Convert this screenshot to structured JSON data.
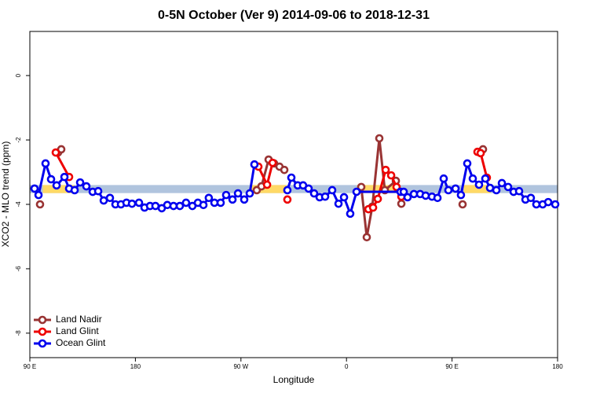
{
  "chart_data": {
    "type": "line",
    "title": "0-5N October (Ver 9)   2014-09-06 to 2018-12-31",
    "xlabel": "Longitude",
    "ylabel": "XCO2 - MLO trend (ppm)",
    "xlim": [
      90,
      540
    ],
    "xticks": [
      {
        "value": 90,
        "label": "90 E"
      },
      {
        "value": 180,
        "label": "180"
      },
      {
        "value": 270,
        "label": "90 W"
      },
      {
        "value": 360,
        "label": "0"
      },
      {
        "value": 450,
        "label": "90 E"
      },
      {
        "value": 540,
        "label": "180"
      }
    ],
    "ylim": [
      -8.76,
      1.37
    ],
    "yticks": [
      0,
      -2,
      -4,
      -6,
      -8
    ],
    "legend": "bottom-left",
    "band": {
      "color": "#b0c4de",
      "ylim": [
        -3.65,
        -3.4
      ]
    },
    "land_segments": {
      "color": "#ffd966",
      "x": [
        [
          101,
          128
        ],
        [
          279,
          309
        ],
        [
          369,
          406
        ],
        [
          460,
          483
        ]
      ]
    },
    "series": [
      {
        "name": "Land Nadir",
        "color": "#993333",
        "x": [
          98.7,
          106,
          114.1,
          116.8,
          200,
          283.5,
          287.5,
          293.6,
          298.3,
          302.9,
          307.0,
          340,
          372.6,
          377.3,
          382.0,
          388.0,
          392.7,
          402.1,
          406.8,
          430,
          459.0,
          465,
          473.7,
          476.4
        ],
        "values": [
          -4.0,
          null,
          -2.39,
          -2.29,
          null,
          -3.56,
          -3.44,
          -2.61,
          -2.73,
          -2.83,
          -2.93,
          null,
          -3.46,
          -5.02,
          -4.07,
          -1.95,
          -3.56,
          -3.27,
          -3.98,
          null,
          -4.0,
          null,
          -2.39,
          -2.29
        ]
      },
      {
        "name": "Land Glint",
        "color": "#ee0000",
        "x": [
          112.1,
          123.5,
          200,
          284.9,
          292.3,
          297.0,
          303,
          309.6,
          340,
          378.7,
          382.7,
          386.7,
          393.4,
          398.1,
          402.7,
          406.8,
          440,
          471.7,
          474.4,
          479.7
        ],
        "values": [
          -2.39,
          -3.15,
          null,
          -2.83,
          -3.39,
          -2.71,
          null,
          -3.85,
          null,
          -4.15,
          -4.1,
          -3.83,
          -2.93,
          -3.1,
          -3.46,
          -3.76,
          null,
          -2.37,
          -2.41,
          -3.17
        ]
      },
      {
        "name": "Ocean Glint",
        "color": "#0000ee",
        "x": [
          94.0,
          97.4,
          103.4,
          108.1,
          112.8,
          119.5,
          123.5,
          128.2,
          132.9,
          138.2,
          143.6,
          148.3,
          153.0,
          158.3,
          163.0,
          167.7,
          172.4,
          177.1,
          183.1,
          187.8,
          192.5,
          197.1,
          202.5,
          207.2,
          212.5,
          217.9,
          223.2,
          228.6,
          233.3,
          238.0,
          242.6,
          247.4,
          252.7,
          257.4,
          262.8,
          267.5,
          272.8,
          277.5,
          281.5,
          295,
          309.6,
          313.0,
          318.4,
          323.0,
          327.7,
          332.4,
          337.1,
          341.8,
          347.8,
          353.2,
          357.9,
          363.2,
          368.6,
          406.1,
          408.8,
          412.1,
          417.5,
          422.8,
          427.5,
          432.9,
          437.6,
          442.9,
          446.9,
          453.0,
          457.6,
          463.0,
          467.7,
          473.0,
          478.4,
          482.4,
          487.8,
          492.5,
          497.8,
          502.5,
          507.2,
          512.6,
          517.2,
          521.9,
          527.3,
          532.0,
          538.0
        ],
        "values": [
          -3.51,
          -3.71,
          -2.73,
          -3.22,
          -3.41,
          -3.15,
          -3.51,
          -3.56,
          -3.32,
          -3.44,
          -3.61,
          -3.59,
          -3.88,
          -3.8,
          -4.0,
          -4.0,
          -3.95,
          -3.98,
          -3.95,
          -4.1,
          -4.05,
          -4.05,
          -4.12,
          -4.02,
          -4.05,
          -4.05,
          -3.95,
          -4.05,
          -3.95,
          -4.02,
          -3.8,
          -3.95,
          -3.95,
          -3.71,
          -3.85,
          -3.66,
          -3.85,
          -3.66,
          -2.76,
          null,
          -3.56,
          -3.17,
          -3.41,
          -3.41,
          -3.51,
          -3.66,
          -3.78,
          -3.76,
          -3.56,
          -3.98,
          -3.78,
          -4.29,
          -3.61,
          -3.61,
          -3.61,
          -3.78,
          -3.68,
          -3.68,
          -3.73,
          -3.76,
          -3.8,
          -3.2,
          -3.56,
          -3.51,
          -3.71,
          -2.73,
          -3.2,
          -3.39,
          -3.2,
          -3.49,
          -3.56,
          -3.34,
          -3.46,
          -3.61,
          -3.59,
          -3.85,
          -3.8,
          -4.0,
          -4.0,
          -3.93,
          -4.0
        ]
      }
    ]
  }
}
